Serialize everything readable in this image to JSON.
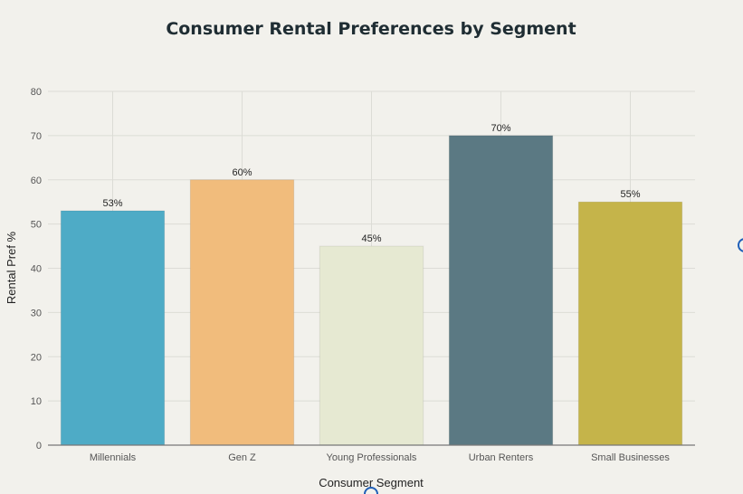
{
  "chart_data": {
    "type": "bar",
    "title": "Consumer Rental Preferences by Segment",
    "xlabel": "Consumer Segment",
    "ylabel": "Rental Pref %",
    "ylim": [
      0,
      80
    ],
    "yticks": [
      0,
      10,
      20,
      30,
      40,
      50,
      60,
      70,
      80
    ],
    "grid": true,
    "categories": [
      "Millennials",
      "Gen Z",
      "Young Professionals",
      "Urban Renters",
      "Small Businesses"
    ],
    "values": [
      53,
      60,
      45,
      70,
      55
    ],
    "data_labels": [
      "53%",
      "60%",
      "45%",
      "70%",
      "55%"
    ],
    "colors": [
      "#4eabc6",
      "#f1bc7c",
      "#e6e9d2",
      "#5b7983",
      "#c5b44a"
    ]
  }
}
